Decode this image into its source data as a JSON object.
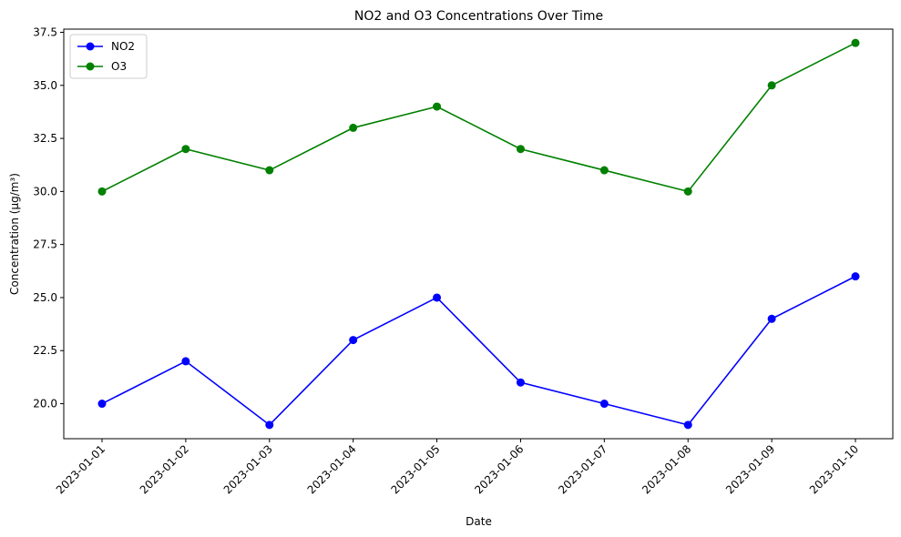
{
  "chart_data": {
    "type": "line",
    "title": "NO2 and O3 Concentrations Over Time",
    "xlabel": "Date",
    "ylabel": "Concentration (µg/m³)",
    "categories": [
      "2023-01-01",
      "2023-01-02",
      "2023-01-03",
      "2023-01-04",
      "2023-01-05",
      "2023-01-06",
      "2023-01-07",
      "2023-01-08",
      "2023-01-09",
      "2023-01-10"
    ],
    "y_ticks": [
      "20.0",
      "22.5",
      "25.0",
      "27.5",
      "30.0",
      "32.5",
      "35.0",
      "37.5"
    ],
    "ylim": [
      18.35,
      37.65
    ],
    "grid": false,
    "legend_position": "upper-left",
    "series": [
      {
        "name": "NO2",
        "color": "#0000ff",
        "marker": "circle",
        "values": [
          20,
          22,
          19,
          23,
          25,
          21,
          20,
          19,
          24,
          26
        ]
      },
      {
        "name": "O3",
        "color": "#008000",
        "marker": "circle",
        "values": [
          30,
          32,
          31,
          33,
          34,
          32,
          31,
          30,
          35,
          37
        ]
      }
    ]
  }
}
